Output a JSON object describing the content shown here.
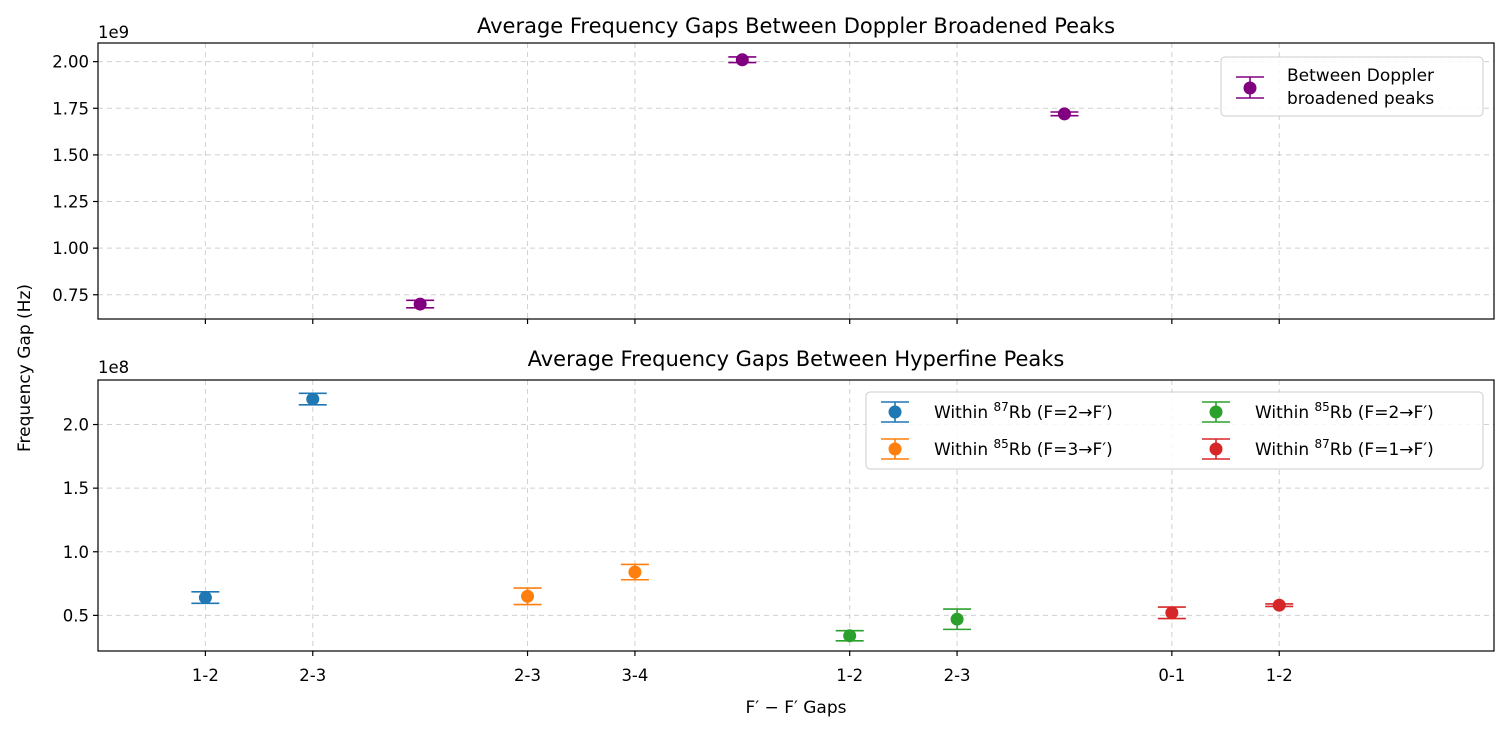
{
  "chart_data": [
    {
      "type": "scatter",
      "title": "Average Frequency Gaps Between Doppler Broadened Peaks",
      "ylabel": "Frequency Gap (Hz)",
      "y_offset_label": "1e9",
      "ylim": [
        0.62,
        2.1
      ],
      "yticks": [
        "0.75",
        "1.00",
        "1.25",
        "1.50",
        "1.75",
        "2.00"
      ],
      "grid": true,
      "legend_position": "top-right",
      "series": [
        {
          "name": "Between Doppler broadened peaks",
          "color": "#800080",
          "points": [
            {
              "x": 3,
              "y": 0.7,
              "err": 0.02
            },
            {
              "x": 6,
              "y": 2.01,
              "err": 0.015
            },
            {
              "x": 9,
              "y": 1.72,
              "err": 0.01
            }
          ]
        }
      ]
    },
    {
      "type": "scatter",
      "title": "Average Frequency Gaps Between Hyperfine Peaks",
      "xlabel": "F′ − F′ Gaps",
      "y_offset_label": "1e8",
      "ylim": [
        0.22,
        2.35
      ],
      "yticks": [
        "0.5",
        "1.0",
        "1.5",
        "2.0"
      ],
      "categories": [
        "1-2",
        "2-3",
        "2-3",
        "3-4",
        "1-2",
        "2-3",
        "0-1",
        "1-2"
      ],
      "grid": true,
      "legend_position": "top-right",
      "series": [
        {
          "name": "Within 87Rb (F=2→F′)",
          "legend_iso": "87",
          "legend_pre": "Within ",
          "legend_post": "Rb (F=2→F′)",
          "color": "#1f77b4",
          "points": [
            {
              "x": 1,
              "y": 0.64,
              "err": 0.045
            },
            {
              "x": 2,
              "y": 2.2,
              "err": 0.045
            }
          ]
        },
        {
          "name": "Within 85Rb (F=3→F′)",
          "legend_iso": "85",
          "legend_pre": "Within ",
          "legend_post": "Rb (F=3→F′)",
          "color": "#ff7f0e",
          "points": [
            {
              "x": 4,
              "y": 0.65,
              "err": 0.065
            },
            {
              "x": 5,
              "y": 0.84,
              "err": 0.06
            }
          ]
        },
        {
          "name": "Within 85Rb (F=2→F′)",
          "legend_iso": "85",
          "legend_pre": "Within ",
          "legend_post": "Rb (F=2→F′)",
          "color": "#2ca02c",
          "points": [
            {
              "x": 7,
              "y": 0.34,
              "err": 0.04
            },
            {
              "x": 8,
              "y": 0.47,
              "err": 0.08
            }
          ]
        },
        {
          "name": "Within 87Rb (F=1→F′)",
          "legend_iso": "87",
          "legend_pre": "Within ",
          "legend_post": "Rb (F=1→F′)",
          "color": "#d62728",
          "points": [
            {
              "x": 10,
              "y": 0.52,
              "err": 0.045
            },
            {
              "x": 11,
              "y": 0.58,
              "err": 0.01
            }
          ]
        }
      ]
    }
  ],
  "x_axis": {
    "xlim": [
      0,
      13
    ],
    "tick_positions": [
      1,
      2,
      4,
      5,
      7,
      8,
      10,
      11
    ]
  },
  "legend_top": {
    "line1": "Between Doppler",
    "line2": "broadened peaks"
  }
}
